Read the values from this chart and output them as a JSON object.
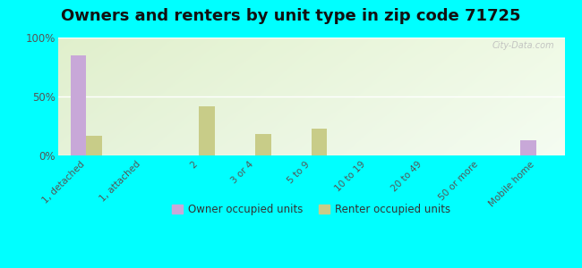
{
  "title": "Owners and renters by unit type in zip code 71725",
  "categories": [
    "1, detached",
    "1, attached",
    "2",
    "3 or 4",
    "5 to 9",
    "10 to 19",
    "20 to 49",
    "50 or more",
    "Mobile home"
  ],
  "owner_values": [
    85,
    0,
    0,
    0,
    0,
    0,
    0,
    0,
    13
  ],
  "renter_values": [
    17,
    0,
    42,
    18,
    23,
    0,
    0,
    0,
    0
  ],
  "owner_color": "#c8a8d8",
  "renter_color": "#c8cc88",
  "outer_bg": "#00ffff",
  "ylim": [
    0,
    100
  ],
  "yticks": [
    0,
    50,
    100
  ],
  "ytick_labels": [
    "0%",
    "50%",
    "100%"
  ],
  "bar_width": 0.28,
  "title_fontsize": 13,
  "legend_labels": [
    "Owner occupied units",
    "Renter occupied units"
  ],
  "watermark": "City-Data.com"
}
